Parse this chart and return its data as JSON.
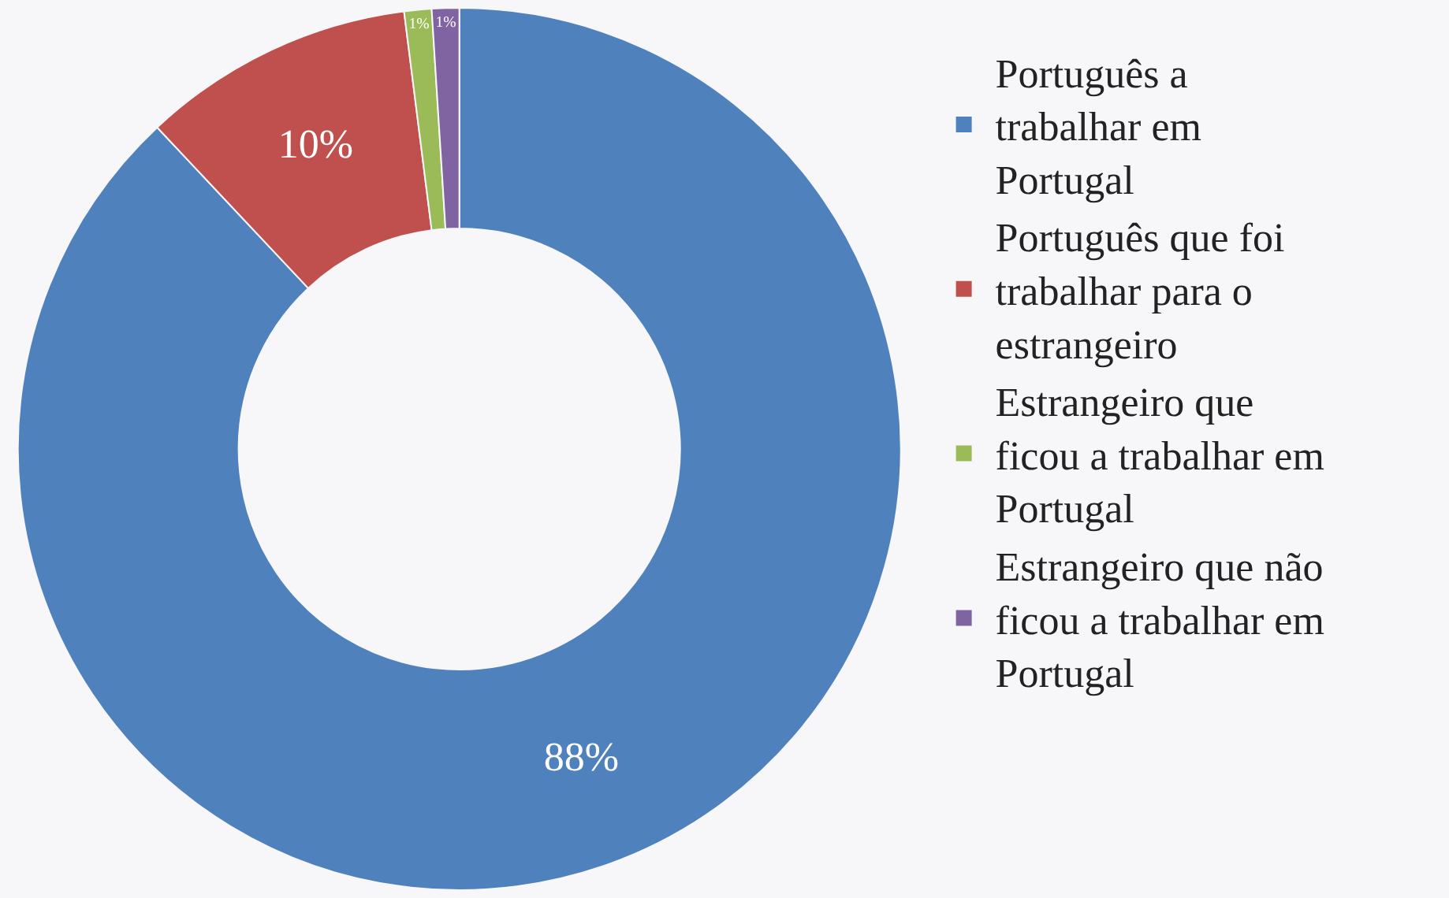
{
  "chart_data": {
    "type": "donut",
    "categories": [
      "Português a trabalhar em Portugal",
      "Português que foi trabalhar para o estrangeiro",
      "Estrangeiro que ficou a trabalhar em Portugal",
      "Estrangeiro que não ficou a trabalhar em Portugal"
    ],
    "values": [
      88,
      10,
      1,
      1
    ],
    "value_labels": [
      "88%",
      "10%",
      "1%",
      "1%"
    ],
    "colors": [
      "#4f81bd",
      "#c0504d",
      "#9bbb59",
      "#8064a2"
    ],
    "legend": "right"
  }
}
